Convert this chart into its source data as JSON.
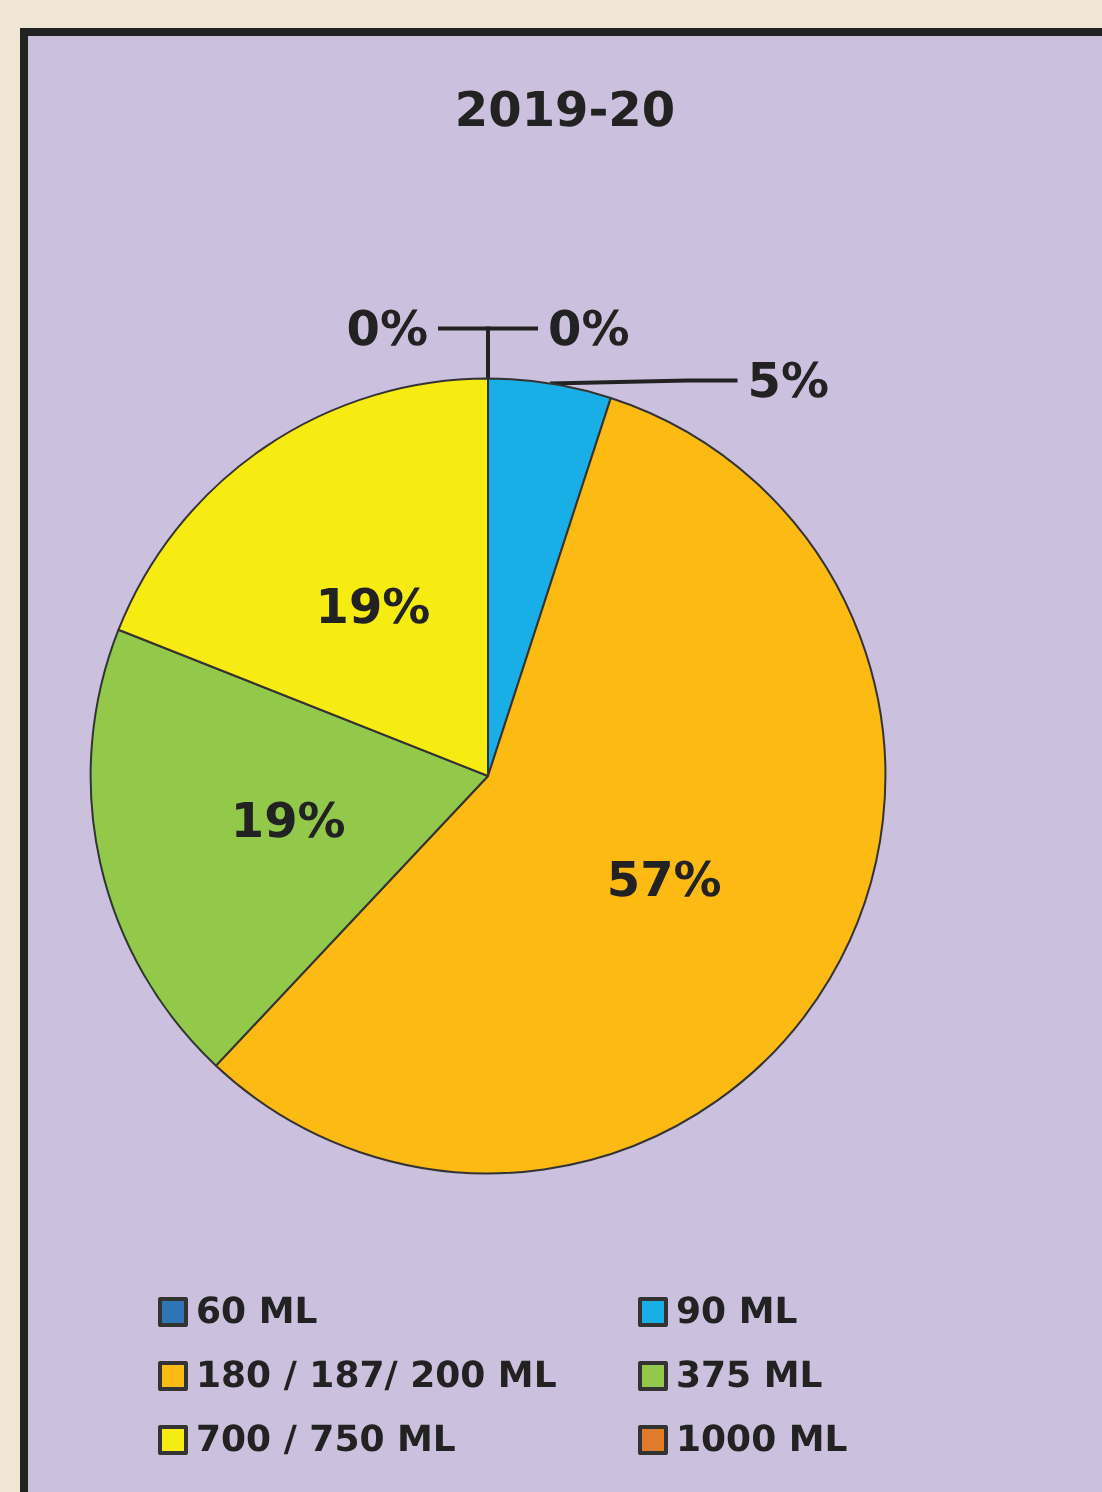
{
  "chart_data": {
    "type": "pie",
    "title": "2019-20",
    "categories": [
      "60 ML",
      "90 ML",
      "180 / 187/ 200 ML",
      "375 ML",
      "700 / 750 ML",
      "1000 ML"
    ],
    "values": [
      0,
      5,
      57,
      19,
      19,
      0
    ],
    "colors": [
      "#2e75b6",
      "#19aee6",
      "#fcba12",
      "#92c94a",
      "#f6ec12",
      "#e07b2a"
    ],
    "value_labels": [
      "0%",
      "5%",
      "57%",
      "19%",
      "19%",
      "0%"
    ],
    "legend": "bottom"
  }
}
